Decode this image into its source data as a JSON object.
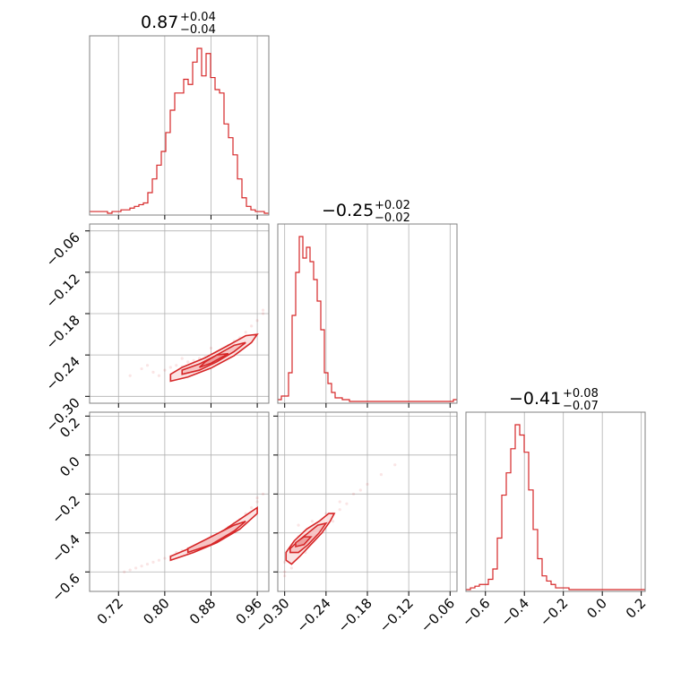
{
  "colors": {
    "accent": "#d62728",
    "grid": "#b0b0b0",
    "frame": "#808080"
  },
  "titles": [
    {
      "value": "0.87",
      "upper": "+0.04",
      "lower": "−0.04"
    },
    {
      "value": "−0.25",
      "upper": "+0.02",
      "lower": "−0.02"
    },
    {
      "value": "−0.41",
      "upper": "+0.08",
      "lower": "−0.07"
    }
  ],
  "axes": {
    "p0": {
      "range": [
        0.67,
        0.98
      ],
      "ticks": [
        0.72,
        0.8,
        0.88,
        0.96
      ],
      "labels": [
        "0.72",
        "0.80",
        "0.88",
        "0.96"
      ]
    },
    "p1": {
      "range": [
        -0.31,
        -0.05
      ],
      "ticks": [
        -0.3,
        -0.24,
        -0.18,
        -0.12,
        -0.06
      ],
      "labels": [
        "−0.30",
        "−0.24",
        "−0.18",
        "−0.12",
        "−0.06"
      ]
    },
    "p2": {
      "range": [
        -0.7,
        0.22
      ],
      "ticks": [
        -0.6,
        -0.4,
        -0.2,
        0.0,
        0.2
      ],
      "labels": [
        "−0.6",
        "−0.4",
        "−0.2",
        "0.0",
        "0.2"
      ]
    }
  },
  "chart_data": {
    "type": "corner",
    "title": "",
    "parameters": 3,
    "grid": true,
    "grid_rows": 3,
    "grid_cols": 3,
    "summaries": [
      {
        "median": 0.87,
        "plus": 0.04,
        "minus": 0.04
      },
      {
        "median": -0.25,
        "plus": 0.02,
        "minus": 0.02
      },
      {
        "median": -0.41,
        "plus": 0.08,
        "minus": 0.07
      }
    ],
    "histograms": [
      {
        "param": 0,
        "bin_start": 0.67,
        "bin_width": 0.00775,
        "heights": [
          0.01,
          0.01,
          0.01,
          0.01,
          0.0,
          0.01,
          0.01,
          0.02,
          0.02,
          0.03,
          0.04,
          0.05,
          0.06,
          0.12,
          0.2,
          0.28,
          0.36,
          0.47,
          0.6,
          0.7,
          0.7,
          0.78,
          0.75,
          0.88,
          0.96,
          0.8,
          0.93,
          0.79,
          0.72,
          0.7,
          0.52,
          0.44,
          0.34,
          0.2,
          0.09,
          0.04,
          0.02,
          0.01,
          0.01,
          0.0
        ]
      },
      {
        "param": 1,
        "bin_start": -0.31,
        "bin_width": 0.0052,
        "heights": [
          0.01,
          0.03,
          0.03,
          0.16,
          0.48,
          0.72,
          0.92,
          0.8,
          0.86,
          0.78,
          0.68,
          0.56,
          0.4,
          0.16,
          0.1,
          0.05,
          0.02,
          0.02,
          0.01,
          0.01,
          0.0,
          0.0,
          0.0,
          0.0,
          0.0,
          0.0,
          0.0,
          0.0,
          0.0,
          0.0,
          0.0,
          0.0,
          0.0,
          0.0,
          0.0,
          0.0,
          0.0,
          0.0,
          0.0,
          0.0,
          0.0,
          0.0,
          0.0,
          0.0,
          0.0,
          0.0,
          0.0,
          0.0,
          0.0,
          0.01
        ]
      },
      {
        "param": 2,
        "bin_start": -0.7,
        "bin_width": 0.023,
        "heights": [
          0.0,
          0.01,
          0.02,
          0.03,
          0.03,
          0.06,
          0.12,
          0.3,
          0.55,
          0.68,
          0.82,
          0.96,
          0.9,
          0.8,
          0.58,
          0.35,
          0.18,
          0.08,
          0.05,
          0.03,
          0.01,
          0.01,
          0.01,
          0.0,
          0.0,
          0.0,
          0.0,
          0.0,
          0.0,
          0.0,
          0.0,
          0.0,
          0.0,
          0.0,
          0.0,
          0.0,
          0.0,
          0.0,
          0.0,
          0.0
        ]
      }
    ],
    "scatter": [
      {
        "x_param": 0,
        "y_param": 1,
        "points": [
          [
            0.74,
            -0.27
          ],
          [
            0.76,
            -0.26
          ],
          [
            0.78,
            -0.265
          ],
          [
            0.8,
            -0.262
          ],
          [
            0.81,
            -0.258
          ],
          [
            0.82,
            -0.255
          ],
          [
            0.83,
            -0.257
          ],
          [
            0.84,
            -0.25
          ],
          [
            0.85,
            -0.248
          ],
          [
            0.86,
            -0.245
          ],
          [
            0.87,
            -0.243
          ],
          [
            0.88,
            -0.24
          ],
          [
            0.89,
            -0.236
          ],
          [
            0.9,
            -0.232
          ],
          [
            0.91,
            -0.226
          ],
          [
            0.92,
            -0.22
          ],
          [
            0.93,
            -0.215
          ],
          [
            0.94,
            -0.207
          ],
          [
            0.95,
            -0.198
          ],
          [
            0.96,
            -0.19
          ],
          [
            0.97,
            -0.18
          ],
          [
            0.79,
            -0.27
          ],
          [
            0.83,
            -0.245
          ],
          [
            0.87,
            -0.25
          ],
          [
            0.9,
            -0.24
          ],
          [
            0.77,
            -0.255
          ],
          [
            0.85,
            -0.262
          ],
          [
            0.88,
            -0.23
          ],
          [
            0.93,
            -0.225
          ],
          [
            0.97,
            -0.175
          ]
        ],
        "contours": [
          [
            [
              0.81,
              -0.278
            ],
            [
              0.84,
              -0.272
            ],
            [
              0.88,
              -0.259
            ],
            [
              0.92,
              -0.241
            ],
            [
              0.95,
              -0.222
            ],
            [
              0.96,
              -0.21
            ],
            [
              0.94,
              -0.212
            ],
            [
              0.91,
              -0.226
            ],
            [
              0.87,
              -0.244
            ],
            [
              0.83,
              -0.258
            ],
            [
              0.81,
              -0.268
            ],
            [
              0.81,
              -0.278
            ]
          ],
          [
            [
              0.83,
              -0.268
            ],
            [
              0.86,
              -0.262
            ],
            [
              0.89,
              -0.25
            ],
            [
              0.92,
              -0.235
            ],
            [
              0.94,
              -0.222
            ],
            [
              0.92,
              -0.226
            ],
            [
              0.89,
              -0.24
            ],
            [
              0.86,
              -0.253
            ],
            [
              0.83,
              -0.262
            ],
            [
              0.83,
              -0.268
            ]
          ],
          [
            [
              0.86,
              -0.258
            ],
            [
              0.88,
              -0.252
            ],
            [
              0.91,
              -0.238
            ],
            [
              0.89,
              -0.24
            ],
            [
              0.87,
              -0.25
            ],
            [
              0.86,
              -0.258
            ]
          ]
        ]
      },
      {
        "x_param": 0,
        "y_param": 2,
        "points": [
          [
            0.74,
            -0.59
          ],
          [
            0.75,
            -0.58
          ],
          [
            0.77,
            -0.56
          ],
          [
            0.78,
            -0.55
          ],
          [
            0.79,
            -0.54
          ],
          [
            0.8,
            -0.53
          ],
          [
            0.81,
            -0.52
          ],
          [
            0.82,
            -0.51
          ],
          [
            0.83,
            -0.49
          ],
          [
            0.84,
            -0.48
          ],
          [
            0.85,
            -0.47
          ],
          [
            0.86,
            -0.46
          ],
          [
            0.87,
            -0.44
          ],
          [
            0.88,
            -0.42
          ],
          [
            0.89,
            -0.41
          ],
          [
            0.9,
            -0.39
          ],
          [
            0.91,
            -0.37
          ],
          [
            0.92,
            -0.35
          ],
          [
            0.93,
            -0.33
          ],
          [
            0.94,
            -0.3
          ],
          [
            0.95,
            -0.27
          ],
          [
            0.96,
            -0.24
          ],
          [
            0.97,
            -0.2
          ],
          [
            0.76,
            -0.57
          ],
          [
            0.82,
            -0.5
          ],
          [
            0.86,
            -0.47
          ],
          [
            0.9,
            -0.41
          ],
          [
            0.94,
            -0.31
          ],
          [
            0.73,
            -0.6
          ],
          [
            0.96,
            -0.22
          ]
        ],
        "contours": [
          [
            [
              0.81,
              -0.54
            ],
            [
              0.85,
              -0.5
            ],
            [
              0.89,
              -0.45
            ],
            [
              0.93,
              -0.38
            ],
            [
              0.96,
              -0.3
            ],
            [
              0.96,
              -0.27
            ],
            [
              0.93,
              -0.33
            ],
            [
              0.89,
              -0.41
            ],
            [
              0.85,
              -0.47
            ],
            [
              0.81,
              -0.52
            ],
            [
              0.81,
              -0.54
            ]
          ],
          [
            [
              0.84,
              -0.5
            ],
            [
              0.88,
              -0.46
            ],
            [
              0.92,
              -0.39
            ],
            [
              0.94,
              -0.34
            ],
            [
              0.92,
              -0.36
            ],
            [
              0.88,
              -0.42
            ],
            [
              0.84,
              -0.48
            ],
            [
              0.84,
              -0.5
            ]
          ]
        ]
      },
      {
        "x_param": 1,
        "y_param": 2,
        "points": [
          [
            -0.3,
            -0.6
          ],
          [
            -0.3,
            -0.55
          ],
          [
            -0.29,
            -0.52
          ],
          [
            -0.29,
            -0.48
          ],
          [
            -0.28,
            -0.46
          ],
          [
            -0.28,
            -0.42
          ],
          [
            -0.27,
            -0.44
          ],
          [
            -0.27,
            -0.4
          ],
          [
            -0.26,
            -0.38
          ],
          [
            -0.26,
            -0.42
          ],
          [
            -0.25,
            -0.35
          ],
          [
            -0.25,
            -0.39
          ],
          [
            -0.24,
            -0.33
          ],
          [
            -0.24,
            -0.36
          ],
          [
            -0.23,
            -0.3
          ],
          [
            -0.22,
            -0.28
          ],
          [
            -0.21,
            -0.25
          ],
          [
            -0.2,
            -0.2
          ],
          [
            -0.18,
            -0.15
          ],
          [
            -0.16,
            -0.1
          ],
          [
            -0.14,
            -0.05
          ],
          [
            -0.3,
            -0.62
          ],
          [
            -0.29,
            -0.58
          ],
          [
            -0.28,
            -0.36
          ],
          [
            -0.26,
            -0.34
          ],
          [
            -0.24,
            -0.3
          ],
          [
            -0.22,
            -0.24
          ],
          [
            -0.19,
            -0.18
          ],
          [
            -0.23,
            -0.34
          ],
          [
            -0.27,
            -0.5
          ]
        ],
        "contours": [
          [
            [
              -0.298,
              -0.54
            ],
            [
              -0.29,
              -0.56
            ],
            [
              -0.278,
              -0.52
            ],
            [
              -0.262,
              -0.46
            ],
            [
              -0.246,
              -0.4
            ],
            [
              -0.234,
              -0.34
            ],
            [
              -0.228,
              -0.3
            ],
            [
              -0.236,
              -0.3
            ],
            [
              -0.25,
              -0.34
            ],
            [
              -0.268,
              -0.38
            ],
            [
              -0.286,
              -0.44
            ],
            [
              -0.298,
              -0.5
            ],
            [
              -0.298,
              -0.54
            ]
          ],
          [
            [
              -0.292,
              -0.5
            ],
            [
              -0.28,
              -0.5
            ],
            [
              -0.266,
              -0.46
            ],
            [
              -0.25,
              -0.4
            ],
            [
              -0.24,
              -0.35
            ],
            [
              -0.252,
              -0.36
            ],
            [
              -0.266,
              -0.4
            ],
            [
              -0.28,
              -0.44
            ],
            [
              -0.292,
              -0.48
            ],
            [
              -0.292,
              -0.5
            ]
          ],
          [
            [
              -0.284,
              -0.47
            ],
            [
              -0.272,
              -0.46
            ],
            [
              -0.262,
              -0.42
            ],
            [
              -0.272,
              -0.42
            ],
            [
              -0.284,
              -0.45
            ],
            [
              -0.284,
              -0.47
            ]
          ]
        ]
      }
    ]
  }
}
